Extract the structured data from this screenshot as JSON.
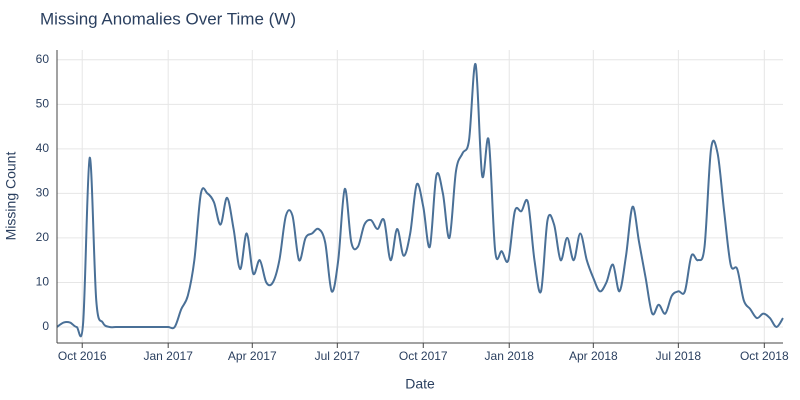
{
  "chart_data": {
    "type": "line",
    "title": "Missing Anomalies Over Time (W)",
    "xlabel": "Date",
    "ylabel": "Missing Count",
    "x": [
      "2016-09-04",
      "2016-09-11",
      "2016-09-18",
      "2016-09-25",
      "2016-10-02",
      "2016-10-09",
      "2016-10-16",
      "2016-10-23",
      "2016-10-30",
      "2016-11-06",
      "2016-11-13",
      "2016-11-20",
      "2016-11-27",
      "2016-12-04",
      "2016-12-11",
      "2016-12-18",
      "2016-12-25",
      "2017-01-01",
      "2017-01-08",
      "2017-01-15",
      "2017-01-22",
      "2017-01-29",
      "2017-02-05",
      "2017-02-12",
      "2017-02-19",
      "2017-02-26",
      "2017-03-05",
      "2017-03-12",
      "2017-03-19",
      "2017-03-26",
      "2017-04-02",
      "2017-04-09",
      "2017-04-16",
      "2017-04-23",
      "2017-04-30",
      "2017-05-07",
      "2017-05-14",
      "2017-05-21",
      "2017-05-28",
      "2017-06-04",
      "2017-06-11",
      "2017-06-18",
      "2017-06-25",
      "2017-07-02",
      "2017-07-09",
      "2017-07-16",
      "2017-07-23",
      "2017-07-30",
      "2017-08-06",
      "2017-08-13",
      "2017-08-20",
      "2017-08-27",
      "2017-09-03",
      "2017-09-10",
      "2017-09-17",
      "2017-09-24",
      "2017-10-01",
      "2017-10-08",
      "2017-10-15",
      "2017-10-22",
      "2017-10-29",
      "2017-11-05",
      "2017-11-12",
      "2017-11-19",
      "2017-11-26",
      "2017-12-03",
      "2017-12-10",
      "2017-12-17",
      "2017-12-24",
      "2017-12-31",
      "2018-01-07",
      "2018-01-14",
      "2018-01-21",
      "2018-01-28",
      "2018-02-04",
      "2018-02-11",
      "2018-02-18",
      "2018-02-25",
      "2018-03-04",
      "2018-03-11",
      "2018-03-18",
      "2018-03-25",
      "2018-04-01",
      "2018-04-08",
      "2018-04-15",
      "2018-04-22",
      "2018-04-29",
      "2018-05-06",
      "2018-05-13",
      "2018-05-20",
      "2018-05-27",
      "2018-06-03",
      "2018-06-10",
      "2018-06-17",
      "2018-06-24",
      "2018-07-01",
      "2018-07-08",
      "2018-07-15",
      "2018-07-22",
      "2018-07-29",
      "2018-08-05",
      "2018-08-12",
      "2018-08-19",
      "2018-08-26",
      "2018-09-02",
      "2018-09-09",
      "2018-09-16",
      "2018-09-23",
      "2018-09-30",
      "2018-10-07",
      "2018-10-14",
      "2018-10-21"
    ],
    "series": [
      {
        "name": "Missing Count",
        "color": "#4a7097",
        "values": [
          0,
          1,
          1,
          0,
          1,
          38,
          6,
          1,
          0,
          0,
          0,
          0,
          0,
          0,
          0,
          0,
          0,
          0,
          0,
          4,
          7,
          15,
          30,
          30,
          28,
          23,
          29,
          22,
          13,
          21,
          12,
          15,
          10,
          10,
          15,
          25,
          25,
          15,
          20,
          21,
          22,
          19,
          8,
          15,
          31,
          19,
          18,
          23,
          24,
          22,
          24,
          15,
          22,
          16,
          21,
          32,
          27,
          18,
          34,
          30,
          20,
          35,
          39,
          42,
          59,
          34,
          42,
          17,
          17,
          15,
          26,
          26,
          28,
          15,
          8,
          24,
          23,
          15,
          20,
          15,
          21,
          15,
          11,
          8,
          10,
          14,
          8,
          16,
          27,
          19,
          11,
          3,
          5,
          3,
          7,
          8,
          8,
          16,
          15,
          18,
          40,
          39,
          26,
          14,
          13,
          6,
          4,
          2,
          3,
          2,
          0,
          2
        ]
      }
    ],
    "xlim": [
      "2016-09-04",
      "2018-10-21"
    ],
    "xticks": [
      {
        "value": "2016-10-01",
        "label": "Oct 2016"
      },
      {
        "value": "2017-01-01",
        "label": "Jan 2017"
      },
      {
        "value": "2017-04-01",
        "label": "Apr 2017"
      },
      {
        "value": "2017-07-01",
        "label": "Jul 2017"
      },
      {
        "value": "2017-10-01",
        "label": "Oct 2017"
      },
      {
        "value": "2018-01-01",
        "label": "Jan 2018"
      },
      {
        "value": "2018-04-01",
        "label": "Apr 2018"
      },
      {
        "value": "2018-07-01",
        "label": "Jul 2018"
      },
      {
        "value": "2018-10-01",
        "label": "Oct 2018"
      }
    ],
    "ylim": [
      -3.6,
      62.2
    ],
    "yticks": [
      0,
      10,
      20,
      30,
      40,
      50,
      60
    ],
    "grid": true
  }
}
